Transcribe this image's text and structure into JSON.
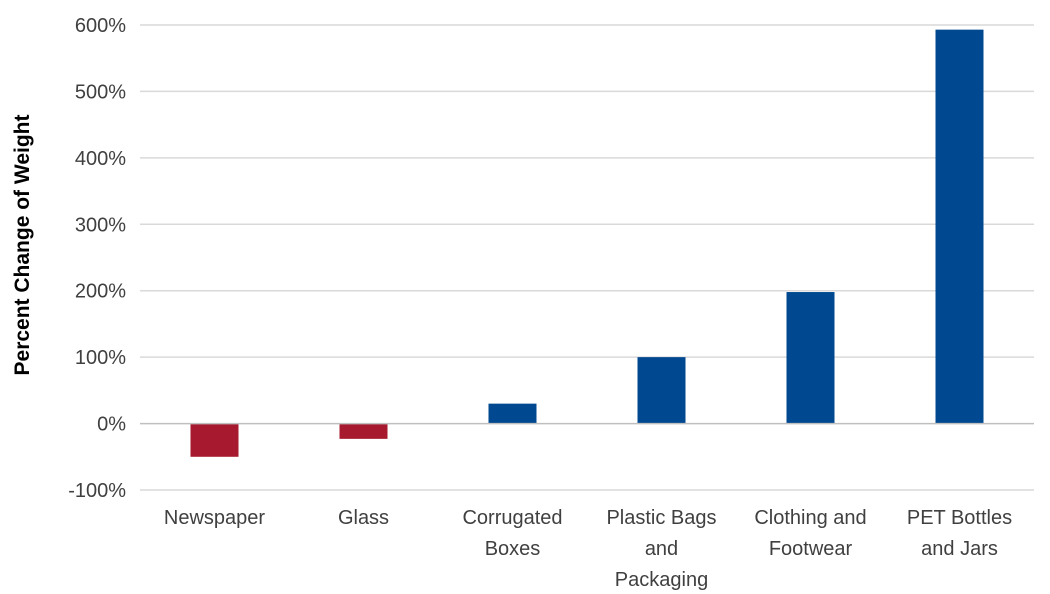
{
  "chart_data": {
    "type": "bar",
    "title": "",
    "xlabel": "",
    "ylabel": "Percent Change of Weight",
    "categories": [
      [
        "Newspaper"
      ],
      [
        "Glass"
      ],
      [
        "Corrugated",
        "Boxes"
      ],
      [
        "Plastic Bags",
        "and",
        "Packaging"
      ],
      [
        "Clothing and",
        "Footwear"
      ],
      [
        "PET Bottles",
        "and Jars"
      ]
    ],
    "values": [
      -50,
      -23,
      30,
      100,
      198,
      593
    ],
    "ylim": [
      -100,
      600
    ],
    "yticks": [
      -100,
      0,
      100,
      200,
      300,
      400,
      500,
      600
    ],
    "ytick_labels": [
      "-100%",
      "0%",
      "100%",
      "200%",
      "300%",
      "400%",
      "500%",
      "600%"
    ],
    "grid": true,
    "colors": {
      "positive": "#004990",
      "negative": "#A6192E",
      "grid": "#d9d9d9",
      "axis": "#bfbfbf"
    }
  }
}
